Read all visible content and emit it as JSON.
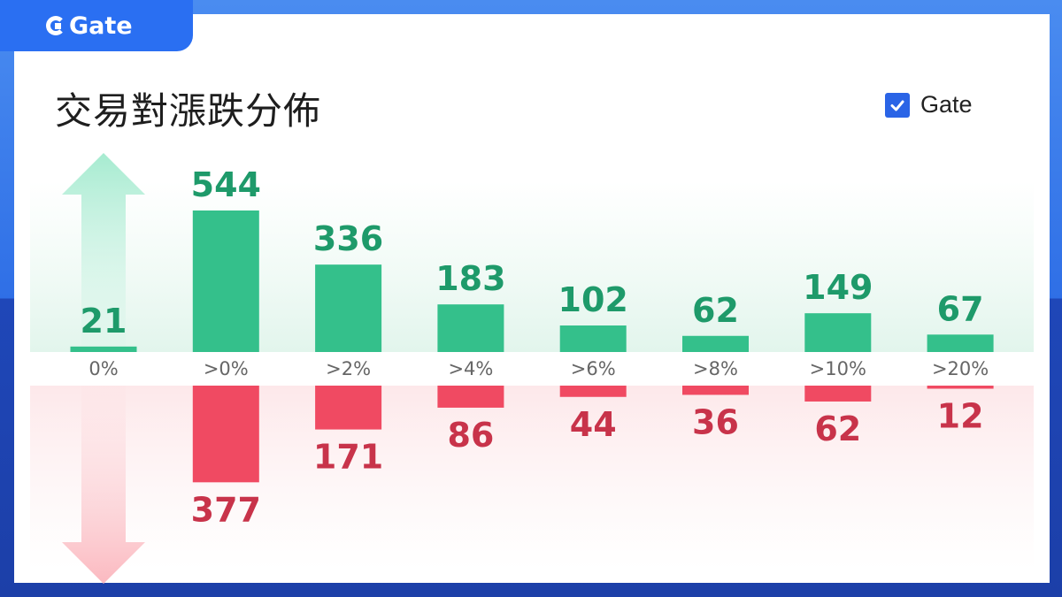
{
  "brand": {
    "name": "Gate"
  },
  "title": "交易對漲跌分佈",
  "legend": {
    "label": "Gate",
    "checked": true
  },
  "colors": {
    "up": "#34c08b",
    "down": "#f04a62",
    "up_text": "#1e9a6a",
    "down_text": "#c8334a",
    "accent": "#2a64e6"
  },
  "chart_data": {
    "type": "bar",
    "title": "交易對漲跌分佈",
    "categories": [
      "0%",
      ">0%",
      ">2%",
      ">4%",
      ">6%",
      ">8%",
      ">10%",
      ">20%"
    ],
    "series": [
      {
        "name": "up",
        "values": [
          21,
          544,
          336,
          183,
          102,
          62,
          149,
          67
        ]
      },
      {
        "name": "down",
        "values": [
          0,
          377,
          171,
          86,
          44,
          36,
          62,
          12
        ]
      }
    ],
    "legend": {
      "entries": [
        "Gate"
      ],
      "position": "top-right"
    },
    "grid": false
  }
}
